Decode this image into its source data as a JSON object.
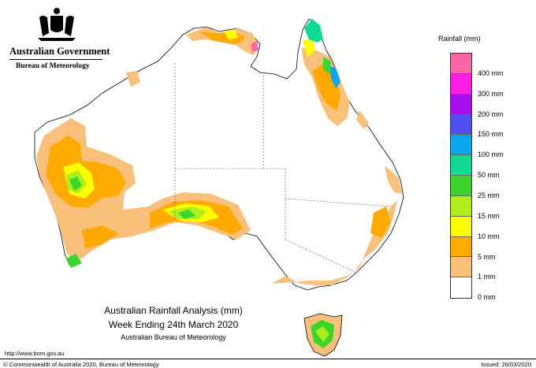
{
  "header": {
    "government": "Australian Government",
    "bureau": "Bureau of Meteorology",
    "crest_icon": "commonwealth-coat-of-arms-icon"
  },
  "map": {
    "title": "Australian Rainfall Analysis (mm)",
    "subtitle": "Week Ending 24th March 2020",
    "source": "Australian Bureau of Meteorology"
  },
  "legend": {
    "title": "Rainfall (mm)",
    "items": [
      {
        "label": "",
        "color": "#ff66a8"
      },
      {
        "label": "400 mm",
        "color": "#ff1ce6"
      },
      {
        "label": "300 mm",
        "color": "#a50eef"
      },
      {
        "label": "200 mm",
        "color": "#4f4ff2"
      },
      {
        "label": "150 mm",
        "color": "#0aa6ef"
      },
      {
        "label": "100 mm",
        "color": "#0fdb93"
      },
      {
        "label": "50 mm",
        "color": "#3bd62b"
      },
      {
        "label": "25 mm",
        "color": "#b0ee1b"
      },
      {
        "label": "15 mm",
        "color": "#ffff00"
      },
      {
        "label": "10 mm",
        "color": "#ffaa00"
      },
      {
        "label": "5 mm",
        "color": "#f8c07a"
      },
      {
        "label": "1 mm",
        "color": "#ffffff"
      },
      {
        "label": "0 mm",
        "color": ""
      }
    ]
  },
  "footer": {
    "url": "http://www.bom.gov.au",
    "copyright": "© Commonwealth of Australia 2020, Bureau of Meteorology",
    "issued": "Issued: 26/03/2020"
  }
}
